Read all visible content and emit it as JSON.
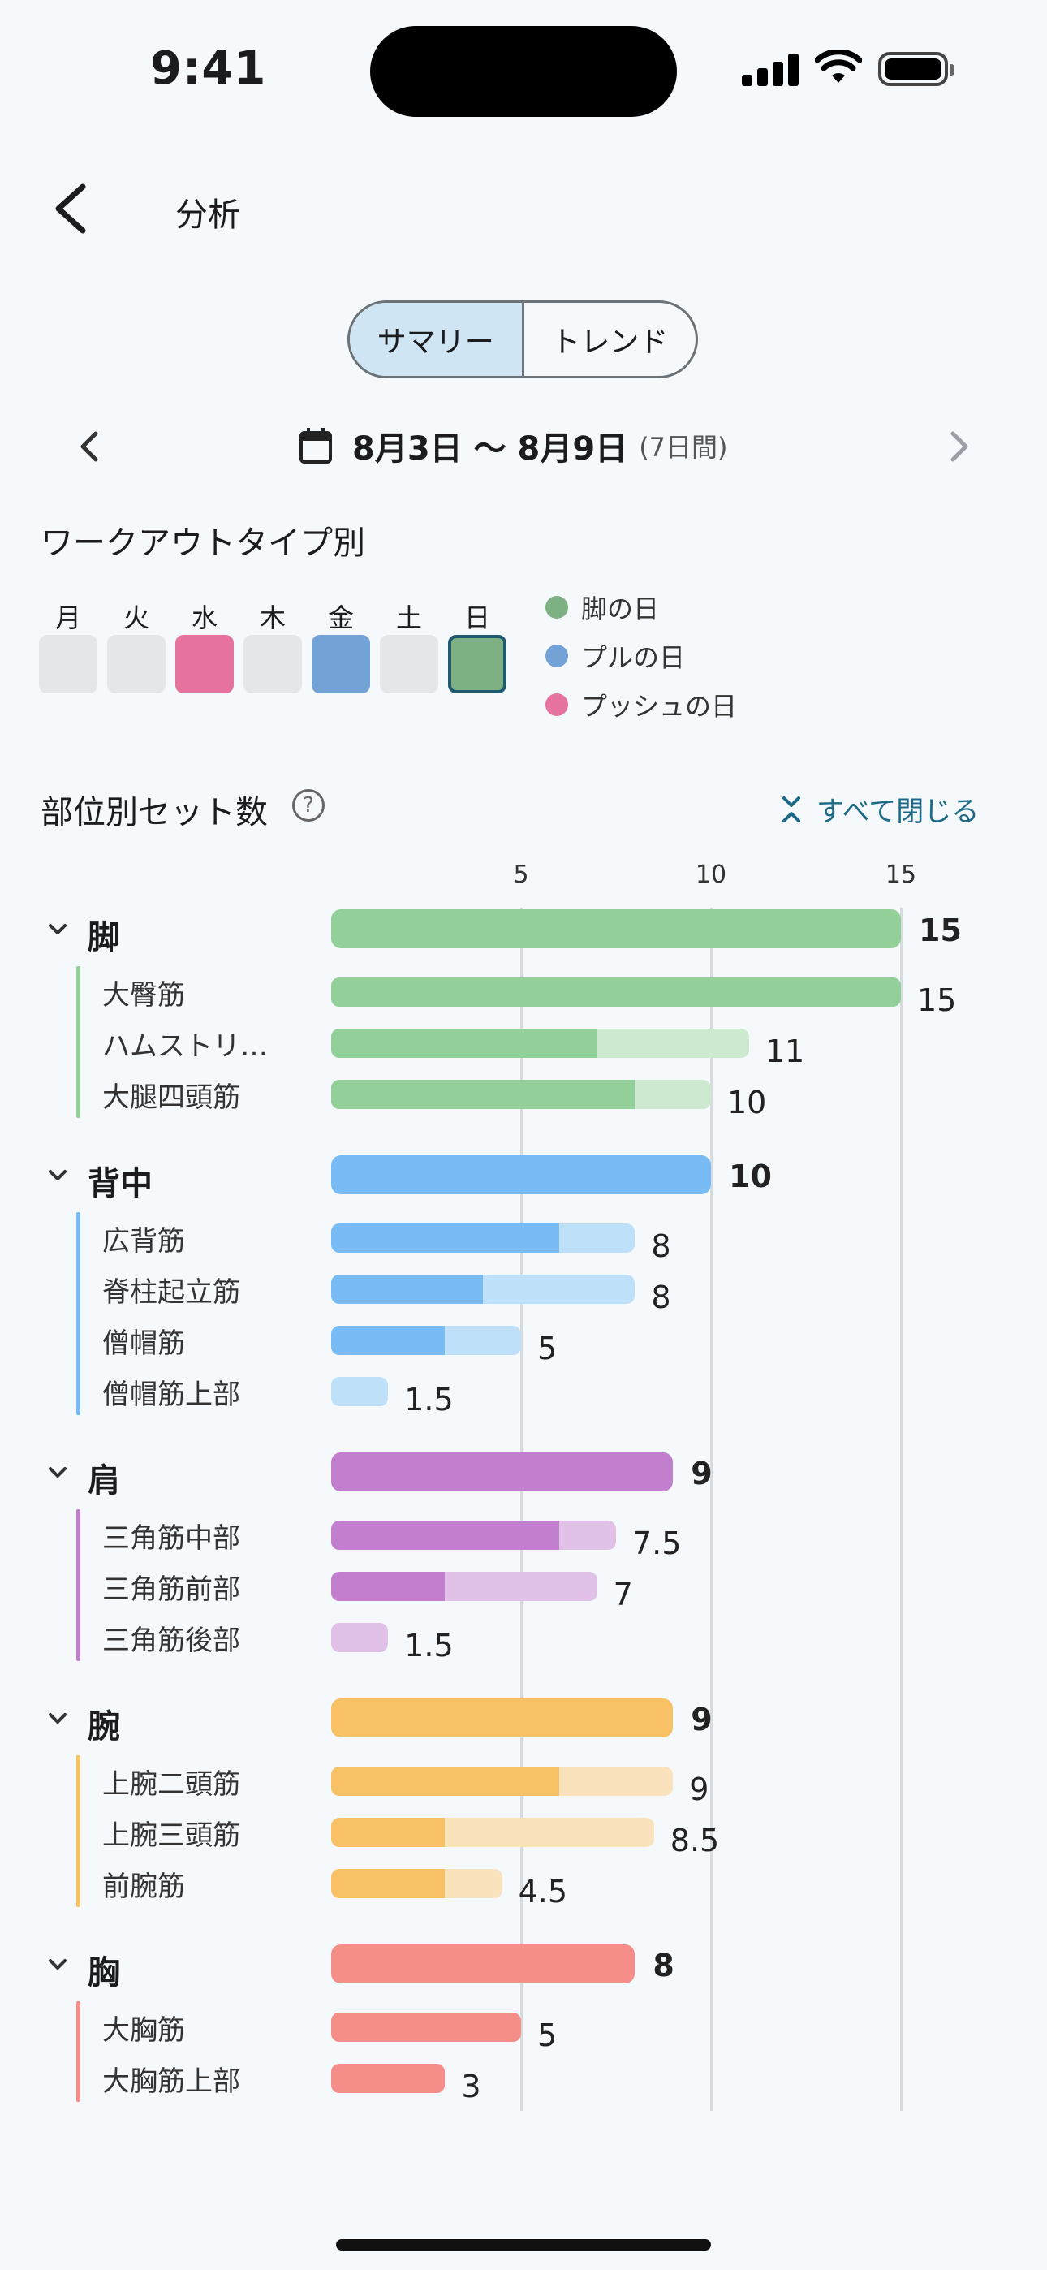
{
  "status_bar": {
    "time": "9:41"
  },
  "header": {
    "title": "分析"
  },
  "segmented": {
    "summary": "サマリー",
    "trend": "トレンド"
  },
  "date_range": {
    "label": "8月3日 〜 8月9日",
    "duration": "(7日間)"
  },
  "workout_types": {
    "title": "ワークアウトタイプ別",
    "days": [
      {
        "label": "月",
        "type": "none",
        "color": "#e4e6e8"
      },
      {
        "label": "火",
        "type": "none",
        "color": "#e4e6e8"
      },
      {
        "label": "水",
        "type": "push",
        "color": "#e6739f"
      },
      {
        "label": "木",
        "type": "none",
        "color": "#e4e6e8"
      },
      {
        "label": "金",
        "type": "pull",
        "color": "#73a2d6"
      },
      {
        "label": "土",
        "type": "none",
        "color": "#e4e6e8"
      },
      {
        "label": "日",
        "type": "legs",
        "color": "#7db083",
        "selected": true
      }
    ],
    "legend": [
      {
        "label": "脚の日",
        "color": "#7db083"
      },
      {
        "label": "プルの日",
        "color": "#73a2d6"
      },
      {
        "label": "プッシュの日",
        "color": "#e6739f"
      }
    ]
  },
  "sets": {
    "title": "部位別セット数",
    "collapse_all": "すべて閉じる",
    "axis_ticks": [
      5,
      10,
      15
    ]
  },
  "chart_data": {
    "type": "bar",
    "orientation": "horizontal",
    "xlim": [
      0,
      15
    ],
    "x_ticks": [
      5,
      10,
      15
    ],
    "groups": [
      {
        "name": "脚",
        "total": 15,
        "total_label": "15",
        "color": "#93cf98",
        "light": "#cde9cf",
        "items": [
          {
            "name": "大臀筋",
            "value": 15,
            "label": "15",
            "primary": 15
          },
          {
            "name": "ハムストリ…",
            "value": 11,
            "label": "11",
            "primary": 7
          },
          {
            "name": "大腿四頭筋",
            "value": 10,
            "label": "10",
            "primary": 8
          }
        ]
      },
      {
        "name": "背中",
        "total": 10,
        "total_label": "10",
        "color": "#79bcf5",
        "light": "#bfe0f9",
        "items": [
          {
            "name": "広背筋",
            "value": 8,
            "label": "8",
            "primary": 6
          },
          {
            "name": "脊柱起立筋",
            "value": 8,
            "label": "8",
            "primary": 4
          },
          {
            "name": "僧帽筋",
            "value": 5,
            "label": "5",
            "primary": 3
          },
          {
            "name": "僧帽筋上部",
            "value": 1.5,
            "label": "1.5",
            "primary": 0
          }
        ]
      },
      {
        "name": "肩",
        "total": 9,
        "total_label": "9",
        "color": "#c17fce",
        "light": "#e1c1e8",
        "items": [
          {
            "name": "三角筋中部",
            "value": 7.5,
            "label": "7.5",
            "primary": 6
          },
          {
            "name": "三角筋前部",
            "value": 7,
            "label": "7",
            "primary": 3
          },
          {
            "name": "三角筋後部",
            "value": 1.5,
            "label": "1.5",
            "primary": 0
          }
        ]
      },
      {
        "name": "腕",
        "total": 9,
        "total_label": "9",
        "color": "#f9c166",
        "light": "#f9e2bc",
        "items": [
          {
            "name": "上腕二頭筋",
            "value": 9,
            "label": "9",
            "primary": 6
          },
          {
            "name": "上腕三頭筋",
            "value": 8.5,
            "label": "8.5",
            "primary": 3
          },
          {
            "name": "前腕筋",
            "value": 4.5,
            "label": "4.5",
            "primary": 3
          }
        ]
      },
      {
        "name": "胸",
        "total": 8,
        "total_label": "8",
        "color": "#f58d88",
        "light": "#f7c6c3",
        "items": [
          {
            "name": "大胸筋",
            "value": 5,
            "label": "5",
            "primary": 5
          },
          {
            "name": "大胸筋上部",
            "value": 3,
            "label": "3",
            "primary": 3
          }
        ]
      }
    ]
  }
}
